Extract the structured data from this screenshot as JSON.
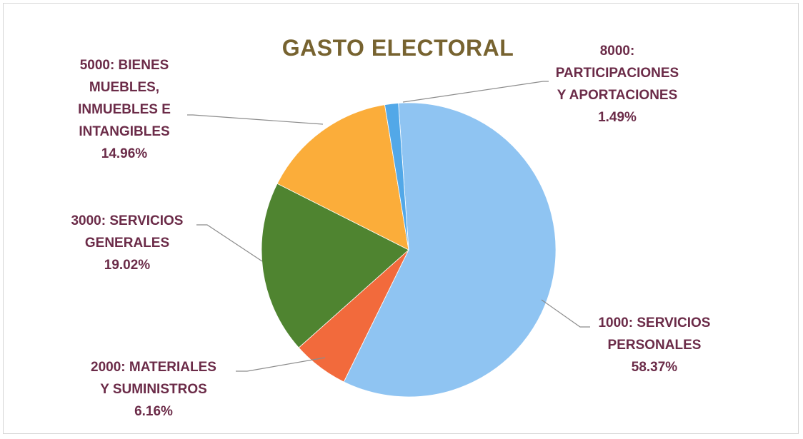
{
  "chart_data": {
    "type": "pie",
    "title": "GASTO ELECTORAL",
    "slices": [
      {
        "label": [
          "1000: SERVICIOS",
          "PERSONALES"
        ],
        "percent_text": "58.37%",
        "value": 58.37,
        "color": "#8fc4f2"
      },
      {
        "label": [
          "2000: MATERIALES",
          "Y SUMINISTROS"
        ],
        "percent_text": "6.16%",
        "value": 6.16,
        "color": "#f26a3c"
      },
      {
        "label": [
          "3000: SERVICIOS",
          "GENERALES"
        ],
        "percent_text": "19.02%",
        "value": 19.02,
        "color": "#4f8430"
      },
      {
        "label": [
          "5000: BIENES",
          "MUEBLES,",
          "INMUEBLES E",
          "INTANGIBLES"
        ],
        "percent_text": "14.96%",
        "value": 14.96,
        "color": "#fbad3a"
      },
      {
        "label": [
          "8000:",
          "PARTICIPACIONES",
          "Y APORTACIONES"
        ],
        "percent_text": "1.49%",
        "value": 1.49,
        "color": "#52a8e8"
      }
    ],
    "legend": "none",
    "data_labels": "outside with leader lines"
  },
  "colors": {
    "title": "#776330",
    "label": "#6b2b48",
    "leader": "#8c8c8c"
  }
}
